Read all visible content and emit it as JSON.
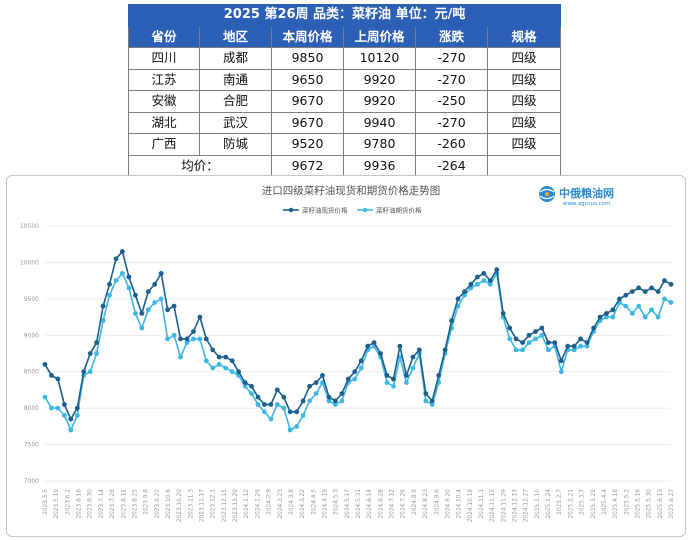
{
  "table": {
    "title": "2025 第26周   品类：菜籽油    单位：元/吨",
    "headers": [
      "省份",
      "地区",
      "本周价格",
      "上周价格",
      "涨跌",
      "规格"
    ],
    "rows": [
      [
        "四川",
        "成都",
        "9850",
        "10120",
        "-270",
        "四级"
      ],
      [
        "江苏",
        "南通",
        "9650",
        "9920",
        "-270",
        "四级"
      ],
      [
        "安徽",
        "合肥",
        "9670",
        "9920",
        "-250",
        "四级"
      ],
      [
        "湖北",
        "武汉",
        "9670",
        "9940",
        "-270",
        "四级"
      ],
      [
        "广西",
        "防城",
        "9520",
        "9780",
        "-260",
        "四级"
      ]
    ],
    "average": {
      "label": "均价：",
      "this_week": "9672",
      "last_week": "9936",
      "change": "-264"
    }
  },
  "logo": {
    "name_cn": "中俄粮油网",
    "url_text": "www.agrirus.com"
  },
  "colors": {
    "spot": "#1b5f8c",
    "futures": "#3db8e6",
    "table_header": "#2c5fb6"
  },
  "chart_data": {
    "type": "line",
    "title": "进口四级菜籽油现货和期货价格走势图",
    "legend_position": "top",
    "xlabel": "",
    "ylabel": "",
    "ylim": [
      7000,
      10500
    ],
    "y_ticks": [
      7000,
      7500,
      8000,
      8500,
      9000,
      9500,
      10000,
      10500
    ],
    "grid": "horizontal",
    "x_labels": [
      "2023.5.5",
      "2023.5.19",
      "2023.6.2",
      "2023.6.16",
      "2023.6.30",
      "2023.7.14",
      "2023.7.28",
      "2023.8.11",
      "2023.8.25",
      "2023.9.8",
      "2023.9.22",
      "2023.10.6",
      "2023.10.20",
      "2023.11.3",
      "2023.11.17",
      "2023.12.1",
      "2023.12.15",
      "2023.12.29",
      "2024.1.12",
      "2024.1.26",
      "2024.2.9",
      "2024.2.23",
      "2024.3.8",
      "2024.3.22",
      "2024.4.5",
      "2024.4.19",
      "2024.5.3",
      "2024.5.17",
      "2024.5.31",
      "2024.6.14",
      "2024.6.28",
      "2024.7.12",
      "2024.7.26",
      "2024.8.9",
      "2024.8.23",
      "2024.9.6",
      "2024.9.20",
      "2024.10.4",
      "2024.10.18",
      "2024.11.1",
      "2024.11.15",
      "2024.11.29",
      "2024.12.13",
      "2024.12.27",
      "2025.1.10",
      "2025.1.24",
      "2025.2.7",
      "2025.2.21",
      "2025.3.7",
      "2025.3.21",
      "2025.4.4",
      "2025.4.18",
      "2025.5.2",
      "2025.5.16",
      "2025.5.30",
      "2025.6.13",
      "2025.6.27"
    ],
    "series": [
      {
        "name": "菜籽油现货价格",
        "color": "#1b5f8c",
        "values": [
          8600,
          8450,
          8400,
          8050,
          7850,
          8000,
          8500,
          8750,
          8900,
          9400,
          9700,
          10050,
          10150,
          9800,
          9550,
          9300,
          9600,
          9700,
          9850,
          9350,
          9400,
          8950,
          8950,
          9050,
          9250,
          8950,
          8800,
          8700,
          8700,
          8650,
          8500,
          8350,
          8300,
          8150,
          8050,
          8050,
          8250,
          8150,
          7950,
          7950,
          8100,
          8300,
          8350,
          8450,
          8150,
          8100,
          8200,
          8400,
          8500,
          8650,
          8850,
          8900,
          8750,
          8450,
          8400,
          8850,
          8450,
          8700,
          8800,
          8200,
          8100,
          8450,
          8800,
          9200,
          9500,
          9600,
          9700,
          9800,
          9850,
          9750,
          9900,
          9300,
          9100,
          8950,
          8900,
          9000,
          9050,
          9100,
          8900,
          8900,
          8650,
          8850,
          8850,
          8950,
          8900,
          9100,
          9250,
          9300,
          9350,
          9500,
          9550,
          9600,
          9650,
          9600,
          9650,
          9600,
          9750,
          9700
        ]
      },
      {
        "name": "菜籽油期货价格",
        "color": "#3db8e6",
        "values": [
          8150,
          8000,
          8000,
          7900,
          7700,
          7900,
          8450,
          8500,
          8750,
          9200,
          9550,
          9750,
          9850,
          9650,
          9300,
          9100,
          9350,
          9450,
          9500,
          8950,
          9000,
          8700,
          8900,
          8950,
          8950,
          8650,
          8550,
          8600,
          8550,
          8500,
          8450,
          8300,
          8200,
          8050,
          7950,
          7850,
          8050,
          8000,
          7700,
          7750,
          7900,
          8100,
          8200,
          8350,
          8100,
          8050,
          8100,
          8350,
          8400,
          8550,
          8800,
          8850,
          8700,
          8350,
          8300,
          8700,
          8350,
          8550,
          8750,
          8100,
          8050,
          8350,
          8750,
          9100,
          9400,
          9550,
          9650,
          9700,
          9750,
          9700,
          9850,
          9250,
          8950,
          8800,
          8800,
          8900,
          8950,
          9000,
          8800,
          8850,
          8500,
          8800,
          8800,
          8850,
          8850,
          9050,
          9200,
          9250,
          9250,
          9450,
          9400,
          9300,
          9400,
          9250,
          9350,
          9250,
          9500,
          9450
        ]
      }
    ]
  }
}
